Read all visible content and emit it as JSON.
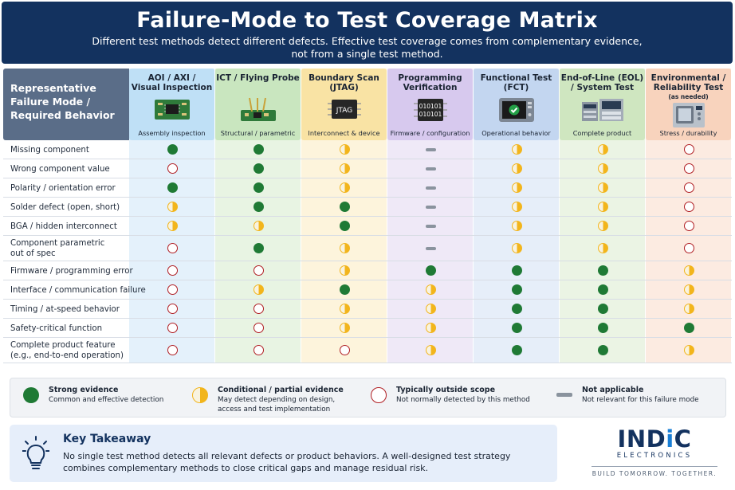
{
  "header": {
    "title": "Failure-Mode to Test Coverage Matrix",
    "subtitle_line1": "Different test methods detect different defects. Effective test coverage comes from complementary evidence,",
    "subtitle_line2": "not from a single test method."
  },
  "matrix": {
    "row_header": [
      "Representative",
      "Failure Mode /",
      "Required Behavior"
    ],
    "columns": [
      {
        "title": [
          "AOI / AXI /",
          "Visual Inspection"
        ],
        "subtitle": "Assembly inspection",
        "icon": "circuit-board-icon",
        "bg": "#e4f1fb",
        "head": "#bfe0f6"
      },
      {
        "title": [
          "ICT / Flying Probe"
        ],
        "subtitle": "Structural / parametric",
        "icon": "flying-probe-icon",
        "bg": "#e8f4e3",
        "head": "#c9e6bf"
      },
      {
        "title": [
          "Boundary Scan",
          "(JTAG)"
        ],
        "subtitle": "Interconnect & device",
        "icon": "chip-icon",
        "chip_label": "JTAG",
        "bg": "#fdf4dc",
        "head": "#f9e3a4"
      },
      {
        "title": [
          "Programming",
          "Verification"
        ],
        "subtitle": "Firmware / configuration",
        "icon": "binary-chip-icon",
        "chip_label_1": "010101",
        "chip_label_2": "010101",
        "bg": "#efe9f7",
        "head": "#d7c9ee"
      },
      {
        "title": [
          "Functional Test",
          "(FCT)"
        ],
        "subtitle": "Operational behavior",
        "icon": "monitor-check-icon",
        "bg": "#e6eef9",
        "head": "#c3d6f0"
      },
      {
        "title": [
          "End-of-Line (EOL)",
          "/ System Test"
        ],
        "subtitle": "Complete product",
        "icon": "test-rack-icon",
        "bg": "#ebf4e4",
        "head": "#cfe6c0"
      },
      {
        "title": [
          "Environmental /",
          "Reliability Test"
        ],
        "note": "(as needed)",
        "subtitle": "Stress / durability",
        "icon": "environmental-chamber-icon",
        "bg": "#fcebe1",
        "head": "#f8d3bd"
      }
    ],
    "rows": [
      {
        "label": [
          "Missing component"
        ],
        "cells": [
          "S",
          "S",
          "P",
          "N",
          "P",
          "P",
          "O"
        ]
      },
      {
        "label": [
          "Wrong component value"
        ],
        "cells": [
          "O",
          "S",
          "P",
          "N",
          "P",
          "P",
          "O"
        ]
      },
      {
        "label": [
          "Polarity / orientation error"
        ],
        "cells": [
          "S",
          "S",
          "P",
          "N",
          "P",
          "P",
          "O"
        ]
      },
      {
        "label": [
          "Solder defect (open, short)"
        ],
        "cells": [
          "P",
          "S",
          "S",
          "N",
          "P",
          "P",
          "O"
        ]
      },
      {
        "label": [
          "BGA / hidden interconnect"
        ],
        "cells": [
          "P",
          "P",
          "S",
          "N",
          "P",
          "P",
          "O"
        ]
      },
      {
        "label": [
          "Component parametric",
          "out of spec"
        ],
        "cells": [
          "O",
          "S",
          "P",
          "N",
          "P",
          "P",
          "O"
        ]
      },
      {
        "label": [
          "Firmware / programming error"
        ],
        "cells": [
          "O",
          "O",
          "P",
          "S",
          "S",
          "S",
          "P"
        ]
      },
      {
        "label": [
          "Interface / communication failure"
        ],
        "cells": [
          "O",
          "P",
          "S",
          "P",
          "S",
          "S",
          "P"
        ]
      },
      {
        "label": [
          "Timing / at-speed behavior"
        ],
        "cells": [
          "O",
          "O",
          "P",
          "P",
          "S",
          "S",
          "P"
        ]
      },
      {
        "label": [
          "Safety-critical function"
        ],
        "cells": [
          "O",
          "O",
          "P",
          "P",
          "S",
          "S",
          "S"
        ]
      },
      {
        "label": [
          "Complete product feature",
          "(e.g., end-to-end operation)"
        ],
        "cells": [
          "O",
          "O",
          "O",
          "P",
          "S",
          "S",
          "P"
        ]
      }
    ]
  },
  "legend": {
    "strong": {
      "title": "Strong evidence",
      "desc": [
        "Common and effective detection"
      ]
    },
    "partial": {
      "title": "Conditional / partial evidence",
      "desc": [
        "May detect depending on design,",
        "access and test implementation"
      ]
    },
    "outside": {
      "title": "Typically outside scope",
      "desc": [
        "Not normally detected by this method"
      ]
    },
    "na": {
      "title": "Not applicable",
      "desc": [
        "Not relevant for this failure mode"
      ]
    }
  },
  "takeaway": {
    "title": "Key Takeaway",
    "text": "No single test method detects all relevant defects or product behaviors. A well-designed test strategy combines complementary methods to close critical gaps and manage residual risk.",
    "icon": "lightbulb-icon"
  },
  "logo": {
    "brand_pre": "IND",
    "brand_i": "i",
    "brand_post": "C",
    "line2": "ELECTRONICS",
    "tagline": "BUILD TOMORROW. TOGETHER."
  },
  "colors": {
    "header_bg": "#13325f",
    "strong": "#1f7a35",
    "partial": "#f2b51c",
    "outside": "#b01e23",
    "not_applicable": "#8a939e"
  }
}
